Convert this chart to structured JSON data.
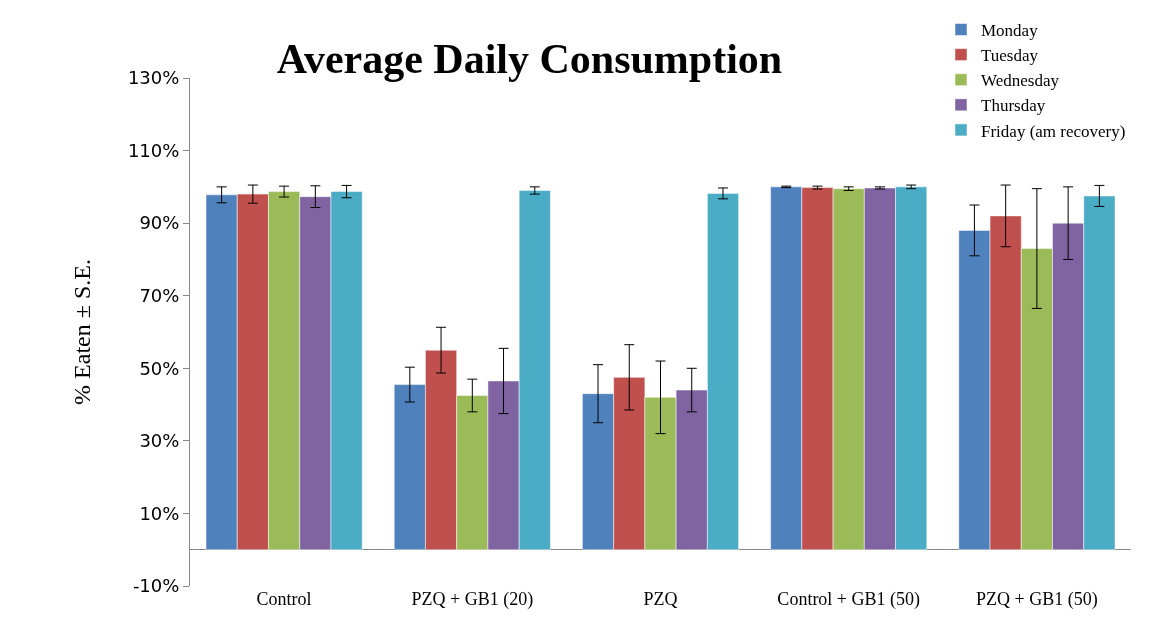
{
  "chart_data": {
    "type": "bar",
    "title": "Average Daily Consumption",
    "ylabel": "% Eaten ± S.E.",
    "categories": [
      "Control",
      "PZQ + GB1 (20)",
      "PZQ",
      "Control + GB1 (50)",
      "PZQ + GB1 (50)"
    ],
    "series": [
      {
        "name": "Monday",
        "color": "#4f81bd",
        "values": [
          97.8,
          45.5,
          43,
          100,
          88
        ],
        "errors": [
          2.2,
          4.8,
          8,
          0.2,
          7
        ]
      },
      {
        "name": "Tuesday",
        "color": "#c0504d",
        "values": [
          98,
          55,
          47.5,
          99.8,
          92
        ],
        "errors": [
          2.5,
          6.3,
          9,
          0.4,
          8.5
        ]
      },
      {
        "name": "Wednesday",
        "color": "#9bbb59",
        "values": [
          98.7,
          42.5,
          42,
          99.5,
          83
        ],
        "errors": [
          1.5,
          4.5,
          10,
          0.5,
          16.5
        ]
      },
      {
        "name": "Thursday",
        "color": "#8064a2",
        "values": [
          97.3,
          46.5,
          44,
          99.7,
          90
        ],
        "errors": [
          3,
          9,
          6,
          0.3,
          10
        ]
      },
      {
        "name": "Friday (am recovery)",
        "color": "#4bacc6",
        "values": [
          98.7,
          99,
          98.2,
          100,
          97.5
        ],
        "errors": [
          1.7,
          1,
          1.5,
          0.5,
          2.9
        ]
      }
    ],
    "ylim": [
      -10,
      130
    ],
    "yticks": [
      {
        "value": -10,
        "label": "-10%"
      },
      {
        "value": 10,
        "label": "10%"
      },
      {
        "value": 30,
        "label": "30%"
      },
      {
        "value": 50,
        "label": "50%"
      },
      {
        "value": 70,
        "label": "70%"
      },
      {
        "value": 90,
        "label": "90%"
      },
      {
        "value": 110,
        "label": "110%"
      },
      {
        "value": 130,
        "label": "130%"
      }
    ],
    "legend": "top right"
  }
}
